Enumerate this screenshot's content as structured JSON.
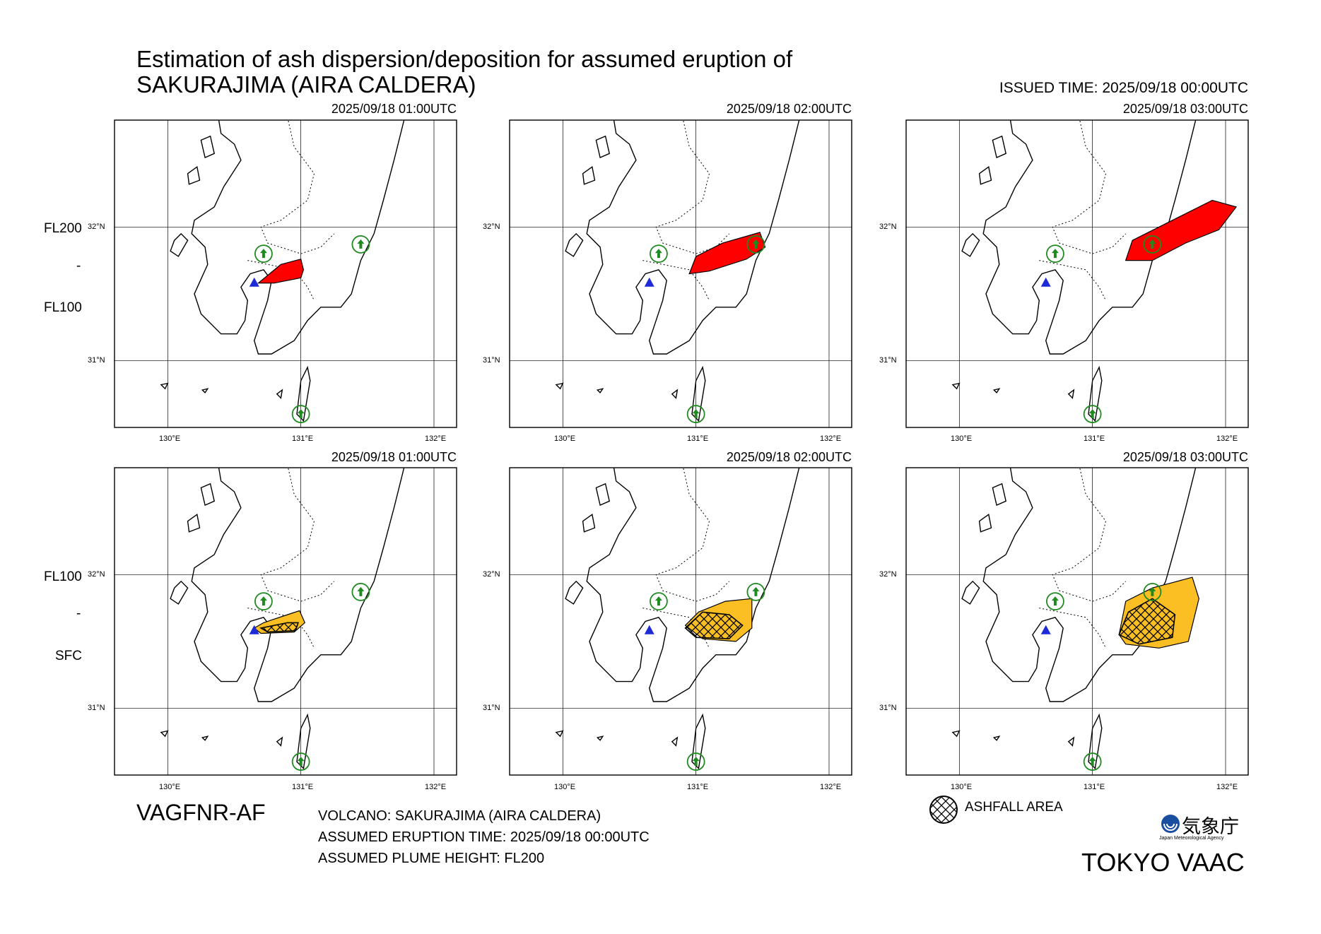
{
  "header": {
    "title_line1": "Estimation of ash dispersion/deposition for assumed eruption of",
    "title_line2": "SAKURAJIMA (AIRA CALDERA)",
    "issued": "ISSUED TIME: 2025/09/18 00:00UTC"
  },
  "rows": [
    {
      "top_label": "FL200",
      "bottom_label": "FL100",
      "kind": "ash_cloud"
    },
    {
      "top_label": "FL100",
      "bottom_label": "SFC",
      "kind": "ashfall"
    }
  ],
  "panels": [
    {
      "time": "2025/09/18 01:00UTC",
      "row": 0,
      "col": 0,
      "fill": "#ff0000",
      "hatch": false
    },
    {
      "time": "2025/09/18 02:00UTC",
      "row": 0,
      "col": 1,
      "fill": "#ff0000",
      "hatch": false
    },
    {
      "time": "2025/09/18 03:00UTC",
      "row": 0,
      "col": 2,
      "fill": "#ff0000",
      "hatch": false
    },
    {
      "time": "2025/09/18 01:00UTC",
      "row": 1,
      "col": 0,
      "fill": "#fbbf24",
      "hatch": true
    },
    {
      "time": "2025/09/18 02:00UTC",
      "row": 1,
      "col": 1,
      "fill": "#fbbf24",
      "hatch": true
    },
    {
      "time": "2025/09/18 03:00UTC",
      "row": 1,
      "col": 2,
      "fill": "#fbbf24",
      "hatch": true
    }
  ],
  "axes": {
    "lat_ticks": [
      "32°N",
      "31°N"
    ],
    "lon_ticks": [
      "130°E",
      "131°E",
      "132°E"
    ],
    "lon_range": [
      129.6,
      132.17
    ],
    "lat_range": [
      30.5,
      32.8
    ]
  },
  "map_features": {
    "volcano": {
      "name": "SAKURAJIMA",
      "lon": 130.65,
      "lat": 31.58,
      "marker": "blue-triangle"
    },
    "airports": [
      {
        "lon": 130.72,
        "lat": 31.8
      },
      {
        "lon": 131.45,
        "lat": 31.87
      },
      {
        "lon": 131.0,
        "lat": 30.6
      }
    ]
  },
  "footer": {
    "product": "VAGFNR-AF",
    "volcano_line": "VOLCANO: SAKURAJIMA (AIRA CALDERA)",
    "eruption_time_line": "ASSUMED ERUPTION TIME: 2025/09/18 00:00UTC",
    "plume_height_line": "ASSUMED PLUME HEIGHT: FL200",
    "legend_label": "ASHFALL AREA",
    "agency_name": "気象庁",
    "agency_subtitle": "Japan Meteorological Agency",
    "vaac": "TOKYO VAAC"
  },
  "colors": {
    "ash_cloud": "#ff0000",
    "ashfall": "#fbbf24",
    "volcano": "#1d2bd6",
    "airport": "#1f8a1f",
    "jma_logo": "#1a4fa0"
  }
}
